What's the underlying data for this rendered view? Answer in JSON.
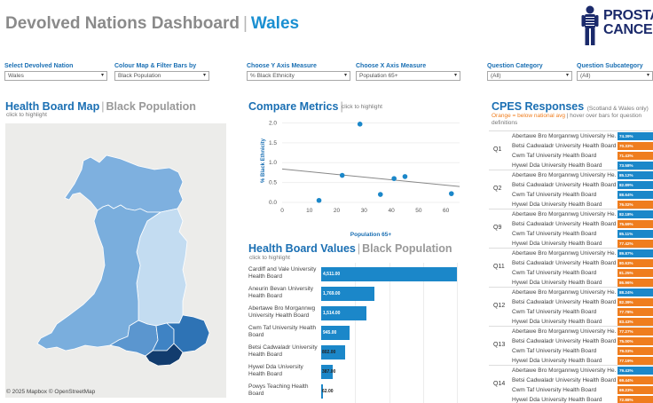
{
  "header": {
    "title": "Devolved Nations Dashboard",
    "separator": "|",
    "nation": "Wales",
    "logo_text_line1": "PROSTATE",
    "logo_text_line2": "CANCER UK"
  },
  "filters": [
    {
      "label": "Select Devolved Nation",
      "value": "Wales"
    },
    {
      "label": "Colour Map & Filter Bars by",
      "value": "Black Population"
    },
    {
      "label": "Choose Y Axis Measure",
      "value": "% Black Ethnicity"
    },
    {
      "label": "Choose X Axis Measure",
      "value": "Population 65+"
    },
    {
      "label": "Question Category",
      "value": "(All)"
    },
    {
      "label": "Question Subcategory",
      "value": "(All)"
    }
  ],
  "map_section": {
    "title": "Health Board Map",
    "separator": "|",
    "subtitle": "Black Population",
    "hint": "click to highlight",
    "copyright": "© 2025 Mapbox  © OpenStreetMap"
  },
  "compare": {
    "title": "Compare Metrics",
    "separator": "|",
    "hint": "click to highlight"
  },
  "chart_data": {
    "type": "scatter",
    "xlabel": "Population 65+",
    "ylabel": "% Black Ethnicity",
    "xlim": [
      0,
      65
    ],
    "ylim": [
      0,
      2.1
    ],
    "xticks": [
      "0",
      "10",
      "20",
      "30",
      "40",
      "50",
      "60"
    ],
    "yticks": [
      "0.0",
      "0.5",
      "1.0",
      "1.5",
      "2.0"
    ],
    "points": [
      {
        "x": 13.5,
        "y": 0.05
      },
      {
        "x": 22,
        "y": 0.68
      },
      {
        "x": 28.5,
        "y": 1.97
      },
      {
        "x": 36,
        "y": 0.2
      },
      {
        "x": 41,
        "y": 0.6
      },
      {
        "x": 45,
        "y": 0.65
      },
      {
        "x": 62,
        "y": 0.22
      }
    ],
    "trend": {
      "x0": 0,
      "y0": 0.84,
      "x1": 65,
      "y1": 0.4
    },
    "colors": {
      "point": "#1b87c9",
      "trend": "#888888"
    }
  },
  "hbv": {
    "title": "Health Board Values",
    "separator": "|",
    "subtitle": "Black Population",
    "hint": "click to highlight",
    "max": 4511,
    "rows": [
      {
        "name": "Cardiff and Vale University Health Board",
        "label": "4,511.00",
        "value": 4511
      },
      {
        "name": "Aneurin Bevan University Health Board",
        "label": "1,769.00",
        "value": 1769
      },
      {
        "name": "Abertawe Bro Morgannwg University Health Board",
        "label": "1,514.00",
        "value": 1514
      },
      {
        "name": "Cwm Taf University Health Board",
        "label": "945.00",
        "value": 945
      },
      {
        "name": "Betsi Cadwaladr University Health Board",
        "label": "802.00",
        "value": 802
      },
      {
        "name": "Hywel Dda University Health Board",
        "label": "387.00",
        "value": 387
      },
      {
        "name": "Powys Teaching Health Board",
        "label": "62.00",
        "value": 62
      }
    ]
  },
  "cpes": {
    "title": "CPES Responses",
    "title_note": "(Scotland & Wales only)",
    "legend_orange": "Orange = below national avg",
    "legend_rest": "| hover over bars for question definitions",
    "colors": {
      "above": "#1b87c9",
      "below": "#ef7d1e"
    },
    "questions": [
      {
        "q": "Q1",
        "rows": [
          {
            "hb": "Abertawe Bro Morgannwg University He...",
            "pct": "74.39%",
            "below": false
          },
          {
            "hb": "Betsi Cadwaladr University Health Board",
            "pct": "70.33%",
            "below": true
          },
          {
            "hb": "Cwm Taf University Health Board",
            "pct": "71.43%",
            "below": true
          },
          {
            "hb": "Hywel Dda University Health Board",
            "pct": "73.58%",
            "below": false
          }
        ]
      },
      {
        "q": "Q2",
        "rows": [
          {
            "hb": "Abertawe Bro Morgannwg University He...",
            "pct": "85.12%",
            "below": false
          },
          {
            "hb": "Betsi Cadwaladr University Health Board",
            "pct": "82.89%",
            "below": false
          },
          {
            "hb": "Cwm Taf University Health Board",
            "pct": "88.64%",
            "below": false
          },
          {
            "hb": "Hywel Dda University Health Board",
            "pct": "76.02%",
            "below": true
          }
        ]
      },
      {
        "q": "Q9",
        "rows": [
          {
            "hb": "Abertawe Bro Morgannwg University He...",
            "pct": "82.18%",
            "below": false
          },
          {
            "hb": "Betsi Cadwaladr University Health Board",
            "pct": "75.69%",
            "below": true
          },
          {
            "hb": "Cwm Taf University Health Board",
            "pct": "85.11%",
            "below": false
          },
          {
            "hb": "Hywel Dda University Health Board",
            "pct": "77.42%",
            "below": true
          }
        ]
      },
      {
        "q": "Q11",
        "rows": [
          {
            "hb": "Abertawe Bro Morgannwg University He...",
            "pct": "89.87%",
            "below": false
          },
          {
            "hb": "Betsi Cadwaladr University Health Board",
            "pct": "80.63%",
            "below": true
          },
          {
            "hb": "Cwm Taf University Health Board",
            "pct": "81.25%",
            "below": true
          },
          {
            "hb": "Hywel Dda University Health Board",
            "pct": "86.96%",
            "below": true
          }
        ]
      },
      {
        "q": "Q12",
        "rows": [
          {
            "hb": "Abertawe Bro Morgannwg University He...",
            "pct": "88.24%",
            "below": false
          },
          {
            "hb": "Betsi Cadwaladr University Health Board",
            "pct": "82.39%",
            "below": true
          },
          {
            "hb": "Cwm Taf University Health Board",
            "pct": "77.78%",
            "below": true
          },
          {
            "hb": "Hywel Dda University Health Board",
            "pct": "83.43%",
            "below": true
          }
        ]
      },
      {
        "q": "Q13",
        "rows": [
          {
            "hb": "Abertawe Bro Morgannwg University He...",
            "pct": "77.27%",
            "below": true
          },
          {
            "hb": "Betsi Cadwaladr University Health Board",
            "pct": "75.00%",
            "below": true
          },
          {
            "hb": "Cwm Taf University Health Board",
            "pct": "79.03%",
            "below": true
          },
          {
            "hb": "Hywel Dda University Health Board",
            "pct": "77.19%",
            "below": true
          }
        ]
      },
      {
        "q": "Q14",
        "rows": [
          {
            "hb": "Abertawe Bro Morgannwg University He...",
            "pct": "79.43%",
            "below": false
          },
          {
            "hb": "Betsi Cadwaladr University Health Board",
            "pct": "69.44%",
            "below": true
          },
          {
            "hb": "Cwm Taf University Health Board",
            "pct": "69.23%",
            "below": true
          },
          {
            "hb": "Hywel Dda University Health Board",
            "pct": "72.88%",
            "below": true
          }
        ]
      }
    ]
  }
}
